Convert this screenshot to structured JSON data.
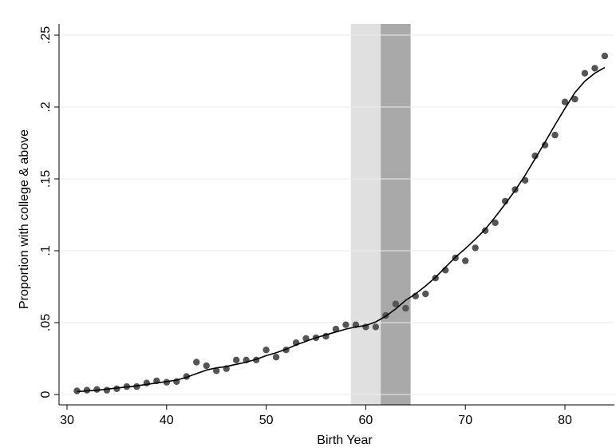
{
  "chart_data": {
    "type": "scatter",
    "xlabel": "Birth Year",
    "ylabel": "Proportion with college & above",
    "xlim": [
      30,
      85
    ],
    "ylim": [
      0,
      0.25
    ],
    "x_ticks": [
      30,
      40,
      50,
      60,
      70,
      80
    ],
    "x_tick_labels": [
      "30",
      "40",
      "50",
      "60",
      "70",
      "80"
    ],
    "y_ticks": [
      0,
      0.05,
      0.1,
      0.15,
      0.2,
      0.25
    ],
    "y_tick_labels": [
      "0",
      ".05",
      ".1",
      ".15",
      ".2",
      ".25"
    ],
    "grid": true,
    "bands": [
      {
        "x0": 58.5,
        "x1": 61.5,
        "color": "#e0e0e0"
      },
      {
        "x0": 61.5,
        "x1": 64.5,
        "color": "#a9a9a9"
      }
    ],
    "series": [
      {
        "kind": "points",
        "color": "#555555",
        "points": [
          [
            31,
            0.0025
          ],
          [
            32,
            0.003
          ],
          [
            33,
            0.0035
          ],
          [
            34,
            0.003
          ],
          [
            35,
            0.004
          ],
          [
            36,
            0.0055
          ],
          [
            37,
            0.0055
          ],
          [
            38,
            0.008
          ],
          [
            39,
            0.0095
          ],
          [
            40,
            0.0085
          ],
          [
            41,
            0.009
          ],
          [
            42,
            0.0125
          ],
          [
            43,
            0.0225
          ],
          [
            44,
            0.02
          ],
          [
            45,
            0.0165
          ],
          [
            46,
            0.018
          ],
          [
            47,
            0.024
          ],
          [
            48,
            0.024
          ],
          [
            49,
            0.024
          ],
          [
            50,
            0.031
          ],
          [
            51,
            0.026
          ],
          [
            52,
            0.031
          ],
          [
            53,
            0.036
          ],
          [
            54,
            0.039
          ],
          [
            55,
            0.0395
          ],
          [
            56,
            0.0405
          ],
          [
            57,
            0.0455
          ],
          [
            58,
            0.0485
          ],
          [
            59,
            0.0485
          ],
          [
            60,
            0.047
          ],
          [
            61,
            0.047
          ],
          [
            62,
            0.055
          ],
          [
            63,
            0.063
          ],
          [
            64,
            0.06
          ],
          [
            65,
            0.0685
          ],
          [
            66,
            0.07
          ],
          [
            67,
            0.081
          ],
          [
            68,
            0.0865
          ],
          [
            69,
            0.095
          ],
          [
            70,
            0.093
          ],
          [
            71,
            0.102
          ],
          [
            72,
            0.114
          ],
          [
            73,
            0.1195
          ],
          [
            74,
            0.1345
          ],
          [
            75,
            0.1425
          ],
          [
            76,
            0.149
          ],
          [
            77,
            0.166
          ],
          [
            78,
            0.1735
          ],
          [
            79,
            0.1805
          ],
          [
            80,
            0.2035
          ],
          [
            81,
            0.2055
          ],
          [
            82,
            0.2235
          ],
          [
            83,
            0.227
          ],
          [
            84,
            0.2355
          ]
        ]
      },
      {
        "kind": "line",
        "color": "#000000",
        "points": [
          [
            31,
            0.002
          ],
          [
            33,
            0.003
          ],
          [
            35,
            0.0045
          ],
          [
            37,
            0.006
          ],
          [
            39,
            0.008
          ],
          [
            41,
            0.01
          ],
          [
            42,
            0.012
          ],
          [
            43,
            0.0145
          ],
          [
            44,
            0.017
          ],
          [
            45,
            0.0185
          ],
          [
            46,
            0.0195
          ],
          [
            47,
            0.021
          ],
          [
            48,
            0.0225
          ],
          [
            49,
            0.0245
          ],
          [
            50,
            0.027
          ],
          [
            51,
            0.029
          ],
          [
            52,
            0.0315
          ],
          [
            53,
            0.0345
          ],
          [
            54,
            0.037
          ],
          [
            55,
            0.0395
          ],
          [
            56,
            0.0415
          ],
          [
            57,
            0.0435
          ],
          [
            58,
            0.0455
          ],
          [
            59,
            0.047
          ],
          [
            60,
            0.048
          ],
          [
            61,
            0.0505
          ],
          [
            62,
            0.0545
          ],
          [
            63,
            0.0595
          ],
          [
            64,
            0.0655
          ],
          [
            65,
            0.07
          ],
          [
            66,
            0.0755
          ],
          [
            67,
            0.0815
          ],
          [
            68,
            0.0885
          ],
          [
            69,
            0.0955
          ],
          [
            70,
            0.1015
          ],
          [
            71,
            0.108
          ],
          [
            72,
            0.115
          ],
          [
            73,
            0.1235
          ],
          [
            74,
            0.1325
          ],
          [
            75,
            0.142
          ],
          [
            76,
            0.1525
          ],
          [
            77,
            0.164
          ],
          [
            78,
            0.1755
          ],
          [
            79,
            0.1875
          ],
          [
            80,
            0.199
          ],
          [
            81,
            0.21
          ],
          [
            82,
            0.218
          ],
          [
            83,
            0.2235
          ],
          [
            84,
            0.2275
          ]
        ]
      }
    ]
  }
}
